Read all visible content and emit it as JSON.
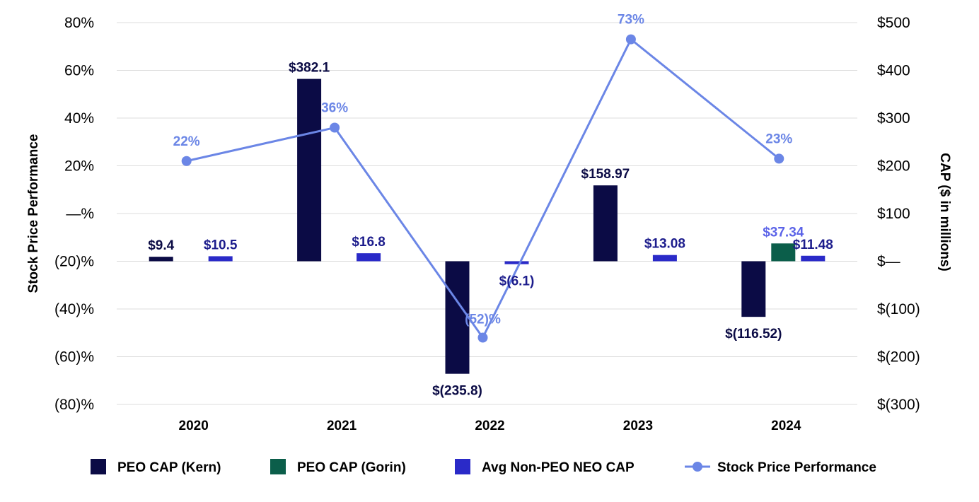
{
  "chart_data": {
    "type": "bar",
    "title": "",
    "categories": [
      "2020",
      "2021",
      "2022",
      "2023",
      "2024"
    ],
    "left_axis": {
      "label": "Stock Price Performance",
      "range": [
        -80,
        80
      ],
      "ticks": [
        80,
        60,
        40,
        20,
        0,
        -20,
        -40,
        -60,
        -80
      ],
      "tick_labels": [
        "80%",
        "60%",
        "40%",
        "20%",
        "—%",
        "(20)%",
        "(40)%",
        "(60)%",
        "(80)%"
      ]
    },
    "right_axis": {
      "label": "CAP ($ in millions)",
      "range": [
        -300,
        500
      ],
      "ticks": [
        500,
        400,
        300,
        200,
        100,
        0,
        -100,
        -200,
        -300
      ],
      "tick_labels": [
        "$500",
        "$400",
        "$300",
        "$200",
        "$100",
        "$—",
        "$(100)",
        "$(200)",
        "$(300)"
      ]
    },
    "series": [
      {
        "name": "PEO CAP (Kern)",
        "type": "bar",
        "axis": "right",
        "color": "#0b0b45",
        "values": [
          9.4,
          382.1,
          -235.8,
          158.97,
          -116.52
        ],
        "labels": [
          "$9.4",
          "$382.1",
          "$(235.8)",
          "$158.97",
          "$(116.52)"
        ]
      },
      {
        "name": "PEO CAP (Gorin)",
        "type": "bar",
        "axis": "right",
        "color": "#0b5e4a",
        "values": [
          null,
          null,
          null,
          null,
          37.34
        ],
        "labels": [
          "",
          "",
          "",
          "",
          "$37.34"
        ]
      },
      {
        "name": "Avg Non-PEO NEO CAP",
        "type": "bar",
        "axis": "right",
        "color": "#2a2ac8",
        "values": [
          10.5,
          16.8,
          -6.1,
          13.08,
          11.48
        ],
        "labels": [
          "$10.5",
          "$16.8",
          "$(6.1)",
          "$13.08",
          "$11.48"
        ]
      },
      {
        "name": "Stock Price Performance",
        "type": "line",
        "axis": "left",
        "color": "#6b86e6",
        "values": [
          22,
          36,
          -52,
          73,
          23
        ],
        "labels": [
          "22%",
          "36%",
          "(52)%",
          "73%",
          "23%"
        ]
      }
    ],
    "grid": true,
    "legend": "bottom"
  }
}
